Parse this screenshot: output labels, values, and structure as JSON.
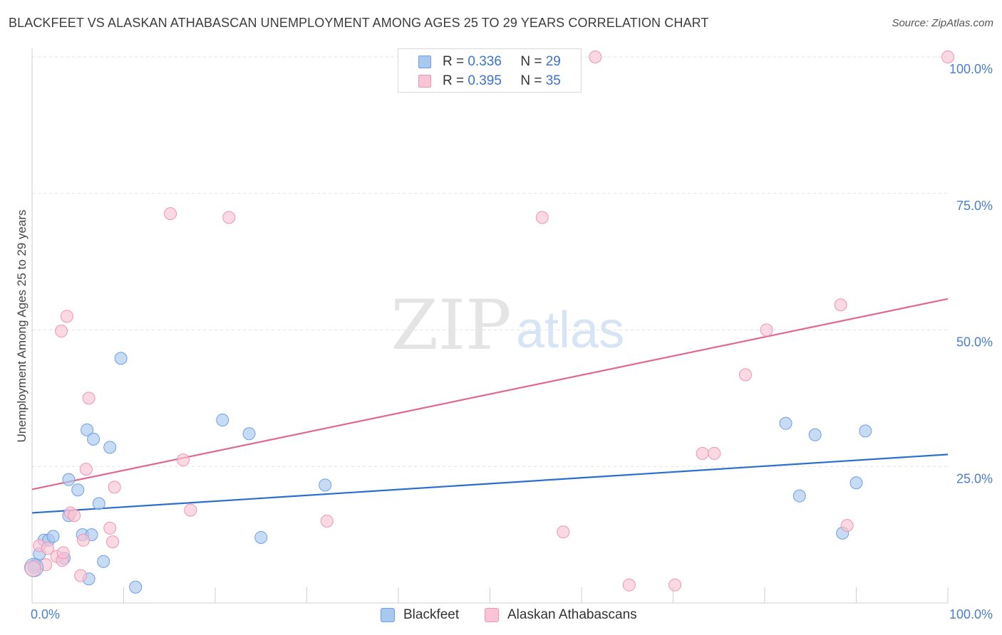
{
  "title": "BLACKFEET VS ALASKAN ATHABASCAN UNEMPLOYMENT AMONG AGES 25 TO 29 YEARS CORRELATION CHART",
  "source": "Source: ZipAtlas.com",
  "watermark": {
    "zip": "ZIP",
    "atlas": "atlas"
  },
  "legend": {
    "r_label": "R = ",
    "n_label": "N = ",
    "rows": [
      {
        "r": "0.336",
        "n": "29"
      },
      {
        "r": "0.395",
        "n": "35"
      }
    ]
  },
  "bottom_legend": [
    "Blackfeet",
    "Alaskan Athabascans"
  ],
  "chart_data": {
    "type": "scatter",
    "title": "BLACKFEET VS ALASKAN ATHABASCAN UNEMPLOYMENT AMONG AGES 25 TO 29 YEARS CORRELATION CHART",
    "xlabel": "",
    "ylabel": "Unemployment Among Ages 25 to 29 years",
    "xlim": [
      0,
      100
    ],
    "ylim": [
      0,
      100
    ],
    "x_tick_labels": [
      "0.0%",
      "100.0%"
    ],
    "y_tick_labels": [
      "100.0%",
      "75.0%",
      "50.0%",
      "25.0%"
    ],
    "y_ticks": [
      100,
      75,
      50,
      25
    ],
    "grid": true,
    "legend_position": "top-center",
    "series": [
      {
        "name": "Blackfeet",
        "color": "#a9c8f0",
        "stroke": "#6f9fe0",
        "line_color": "#2a6fd0",
        "r": 0.336,
        "n": 29,
        "trend": {
          "x0": 0,
          "y0": 16.5,
          "x1": 100,
          "y1": 27.2
        },
        "points": [
          [
            0.3,
            6.9
          ],
          [
            0.8,
            9.0
          ],
          [
            1.3,
            11.5
          ],
          [
            1.8,
            11.5
          ],
          [
            2.3,
            12.2
          ],
          [
            3.5,
            8.2
          ],
          [
            4.0,
            16.0
          ],
          [
            4.0,
            22.6
          ],
          [
            5.0,
            20.7
          ],
          [
            5.5,
            12.5
          ],
          [
            6.0,
            31.7
          ],
          [
            6.2,
            4.4
          ],
          [
            6.5,
            12.5
          ],
          [
            6.7,
            30.0
          ],
          [
            7.3,
            18.2
          ],
          [
            7.8,
            7.6
          ],
          [
            8.5,
            28.5
          ],
          [
            9.7,
            44.8
          ],
          [
            11.3,
            2.9
          ],
          [
            20.8,
            33.5
          ],
          [
            23.7,
            31.0
          ],
          [
            25.0,
            12.0
          ],
          [
            32.0,
            21.6
          ],
          [
            82.3,
            32.9
          ],
          [
            83.8,
            19.6
          ],
          [
            85.5,
            30.8
          ],
          [
            88.5,
            12.8
          ],
          [
            90.0,
            22.0
          ],
          [
            91.0,
            31.5
          ]
        ]
      },
      {
        "name": "Alaskan Athabascans",
        "color": "#f9c4d4",
        "stroke": "#ef94b2",
        "line_color": "#e06890",
        "r": 0.395,
        "n": 35,
        "trend": {
          "x0": 0,
          "y0": 20.8,
          "x1": 100,
          "y1": 55.7
        },
        "points": [
          [
            0.2,
            6.5
          ],
          [
            0.8,
            10.5
          ],
          [
            1.5,
            7.0
          ],
          [
            1.7,
            10.0
          ],
          [
            2.7,
            8.5
          ],
          [
            3.2,
            49.8
          ],
          [
            3.3,
            7.8
          ],
          [
            3.4,
            9.2
          ],
          [
            3.8,
            52.5
          ],
          [
            4.2,
            16.5
          ],
          [
            4.6,
            16.0
          ],
          [
            5.3,
            5.0
          ],
          [
            5.6,
            11.5
          ],
          [
            5.9,
            24.5
          ],
          [
            6.2,
            37.5
          ],
          [
            8.5,
            13.7
          ],
          [
            8.8,
            11.2
          ],
          [
            9.0,
            21.2
          ],
          [
            15.1,
            71.3
          ],
          [
            16.5,
            26.2
          ],
          [
            17.3,
            17.0
          ],
          [
            21.5,
            70.6
          ],
          [
            32.2,
            15.0
          ],
          [
            55.7,
            70.6
          ],
          [
            58.0,
            13.0
          ],
          [
            61.5,
            100.0
          ],
          [
            65.2,
            3.3
          ],
          [
            70.2,
            3.3
          ],
          [
            73.2,
            27.4
          ],
          [
            74.5,
            27.4
          ],
          [
            77.9,
            41.8
          ],
          [
            80.2,
            50.0
          ],
          [
            88.3,
            54.6
          ],
          [
            89.0,
            14.2
          ],
          [
            100.0,
            100.0
          ]
        ]
      }
    ]
  }
}
